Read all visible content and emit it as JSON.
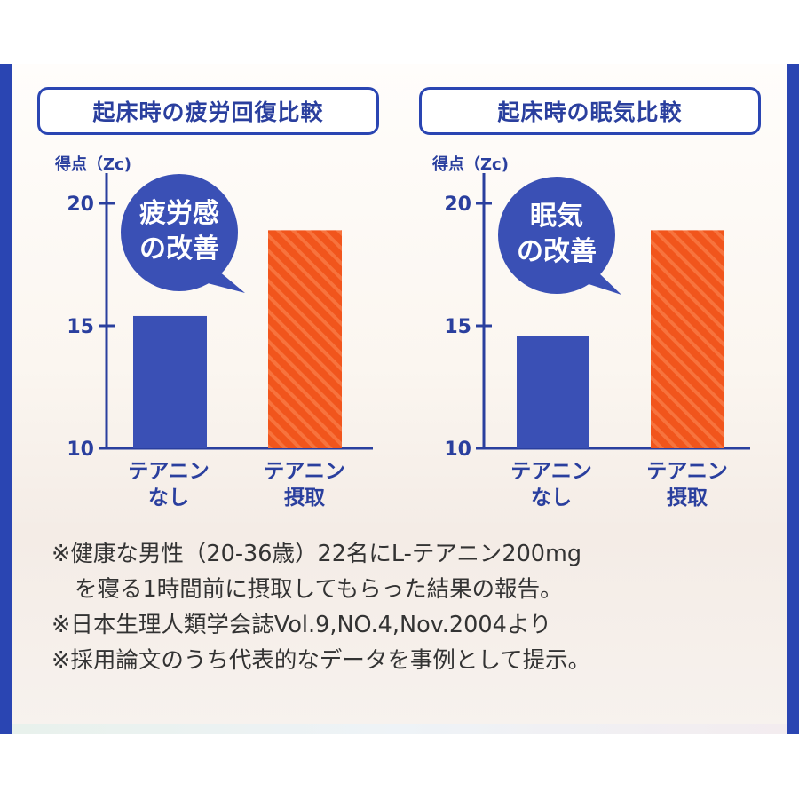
{
  "chart_data": [
    {
      "type": "bar",
      "title": "起床時の疲労回復比較",
      "ylabel": "得点（Zc)",
      "ylim": [
        10,
        20
      ],
      "yticks": [
        "10",
        "15",
        "20"
      ],
      "categories": [
        [
          "テアニン",
          "なし"
        ],
        [
          "テアニン",
          "摂取"
        ]
      ],
      "values": [
        15.4,
        18.9
      ],
      "bar_colors": [
        "#3a50b5",
        "#f1551c"
      ],
      "bubble_text": [
        "疲労感",
        "の改善"
      ]
    },
    {
      "type": "bar",
      "title": "起床時の眠気比較",
      "ylabel": "得点（Zc)",
      "ylim": [
        10,
        20
      ],
      "yticks": [
        "10",
        "15",
        "20"
      ],
      "categories": [
        [
          "テアニン",
          "なし"
        ],
        [
          "テアニン",
          "摂取"
        ]
      ],
      "values": [
        14.6,
        18.9
      ],
      "bar_colors": [
        "#3a50b5",
        "#f1551c"
      ],
      "bubble_text": [
        "眠気",
        "の改善"
      ]
    }
  ],
  "notes": [
    "※健康な男性（20-36歳）22名にL-テアニン200mg",
    "を寝る1時間前に摂取してもらった結果の報告。",
    "※日本生理人類学会誌Vol.9,NO.4,Nov.2004より",
    "※採用論文のうち代表的なデータを事例として提示。"
  ],
  "colors": {
    "frame": "#2a45b2",
    "title_text": "#2a3f9e",
    "axis": "#2a3f9e",
    "bubble": "#3a50b5"
  }
}
